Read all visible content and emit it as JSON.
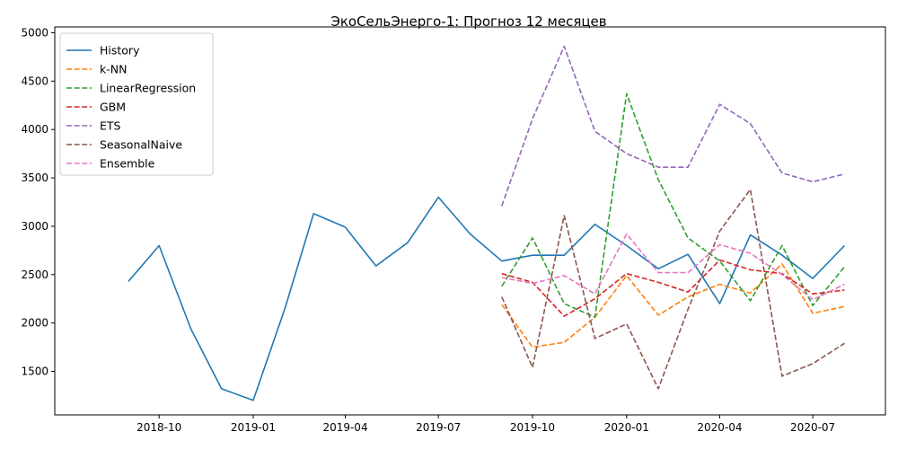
{
  "chart_data": {
    "type": "line",
    "title": "ЭкоСельЭнерго-1: Прогноз 12 месяцев",
    "xlabel": "",
    "ylabel": "",
    "x_tick_labels": [
      "2018-10",
      "2019-01",
      "2019-04",
      "2019-07",
      "2019-10",
      "2020-01",
      "2020-04",
      "2020-07"
    ],
    "x_tick_dates": [
      "2018-10",
      "2019-01",
      "2019-04",
      "2019-07",
      "2019-10",
      "2020-01",
      "2020-04",
      "2020-07"
    ],
    "y_ticks": [
      1500,
      2000,
      2500,
      3000,
      3500,
      4000,
      4500,
      5000
    ],
    "ylim": [
      1050,
      5060
    ],
    "xlim": [
      "2018-06-21",
      "2020-09-10"
    ],
    "grid": false,
    "legend_position": "top-left",
    "history_x": [
      "2018-09",
      "2018-10",
      "2018-11",
      "2018-12",
      "2019-01",
      "2019-02",
      "2019-03",
      "2019-04",
      "2019-05",
      "2019-06",
      "2019-07",
      "2019-08",
      "2019-09",
      "2019-10",
      "2019-11",
      "2019-12",
      "2020-01",
      "2020-02",
      "2020-03",
      "2020-04",
      "2020-05",
      "2020-06",
      "2020-07",
      "2020-08"
    ],
    "forecast_x": [
      "2019-09",
      "2019-10",
      "2019-11",
      "2019-12",
      "2020-01",
      "2020-02",
      "2020-03",
      "2020-04",
      "2020-05",
      "2020-06",
      "2020-07",
      "2020-08"
    ],
    "series": [
      {
        "name": "History",
        "color": "#1f77b4",
        "style": "solid",
        "kind": "history",
        "values": [
          2430,
          2800,
          1940,
          1320,
          1200,
          2150,
          3130,
          2990,
          2590,
          2830,
          3300,
          2920,
          2640,
          2700,
          2700,
          3020,
          2800,
          2560,
          2710,
          2200,
          2910,
          2700,
          2460,
          2800
        ]
      },
      {
        "name": "k-NN",
        "color": "#ff7f0e",
        "style": "dashed",
        "kind": "forecast",
        "values": [
          2190,
          1750,
          1800,
          2060,
          2490,
          2080,
          2270,
          2400,
          2310,
          2610,
          2100,
          2170
        ]
      },
      {
        "name": "LinearRegression",
        "color": "#2ca02c",
        "style": "dashed",
        "kind": "forecast",
        "values": [
          2380,
          2880,
          2200,
          2060,
          4370,
          3480,
          2880,
          2640,
          2230,
          2800,
          2180,
          2580
        ]
      },
      {
        "name": "GBM",
        "color": "#d62728",
        "style": "dashed",
        "kind": "forecast",
        "values": [
          2510,
          2420,
          2070,
          2250,
          2510,
          2420,
          2320,
          2650,
          2550,
          2510,
          2300,
          2340
        ]
      },
      {
        "name": "ETS",
        "color": "#9467bd",
        "style": "dashed",
        "kind": "forecast",
        "values": [
          3210,
          4110,
          4860,
          3980,
          3750,
          3610,
          3610,
          4260,
          4060,
          3550,
          3460,
          3540
        ]
      },
      {
        "name": "SeasonalNaive",
        "color": "#8c564b",
        "style": "dashed",
        "kind": "forecast",
        "values": [
          2270,
          1540,
          3110,
          1840,
          1990,
          1320,
          2140,
          2950,
          3380,
          1450,
          1580,
          1790
        ]
      },
      {
        "name": "Ensemble",
        "color": "#e377c2",
        "style": "dashed",
        "kind": "forecast",
        "values": [
          2470,
          2410,
          2490,
          2300,
          2920,
          2520,
          2520,
          2810,
          2720,
          2500,
          2240,
          2400
        ]
      }
    ]
  }
}
